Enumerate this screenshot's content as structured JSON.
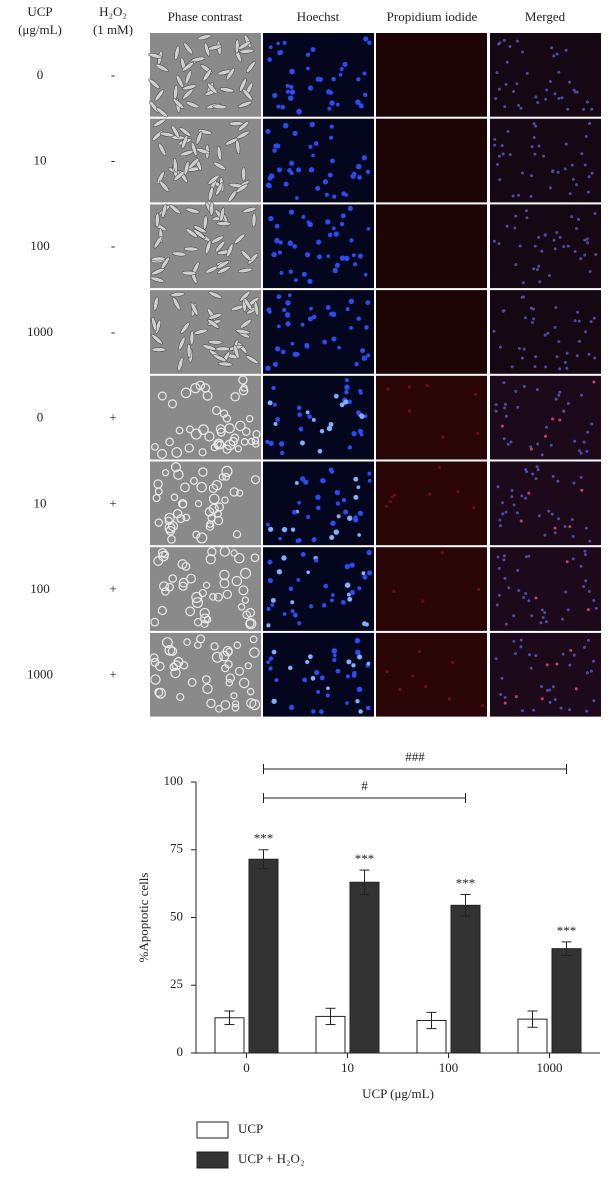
{
  "figure": {
    "columns": [
      [
        "UCP",
        "(μg/mL)"
      ],
      [
        "H₂O₂",
        "(1 mM)"
      ],
      [
        "Phase contrast"
      ],
      [
        "Hoechst"
      ],
      [
        "Propidium iodide"
      ],
      [
        "Merged"
      ]
    ],
    "rows": [
      {
        "ucp": "0",
        "h2o2": "-"
      },
      {
        "ucp": "10",
        "h2o2": "-"
      },
      {
        "ucp": "100",
        "h2o2": "-"
      },
      {
        "ucp": "1000",
        "h2o2": "-"
      },
      {
        "ucp": "0",
        "h2o2": "+"
      },
      {
        "ucp": "10",
        "h2o2": "+"
      },
      {
        "ucp": "100",
        "h2o2": "+"
      },
      {
        "ucp": "1000",
        "h2o2": "+"
      }
    ]
  },
  "chart_data": {
    "type": "bar",
    "ylabel": "%Apoptotic cells",
    "xlabel": "UCP (μg/mL)",
    "categories": [
      "0",
      "10",
      "100",
      "1000"
    ],
    "series": [
      {
        "name": "UCP",
        "color": "#ffffff",
        "values": [
          13,
          13.5,
          12,
          12.5
        ],
        "errors": [
          2.5,
          3,
          3,
          3
        ]
      },
      {
        "name": "UCP + H₂O₂",
        "color": "#333333",
        "values": [
          71.5,
          63,
          54.5,
          38.5
        ],
        "errors": [
          3.5,
          4.5,
          4,
          2.5
        ],
        "significance": [
          "***",
          "***",
          "***",
          "***"
        ]
      }
    ],
    "comparisons": [
      {
        "label": "###",
        "groups": [
          "0",
          "1000"
        ]
      },
      {
        "label": "#",
        "groups": [
          "0",
          "100"
        ]
      }
    ],
    "ylim": [
      0,
      100
    ],
    "yticks": [
      0,
      25,
      50,
      75,
      100
    ],
    "legend": "bottom-left"
  }
}
